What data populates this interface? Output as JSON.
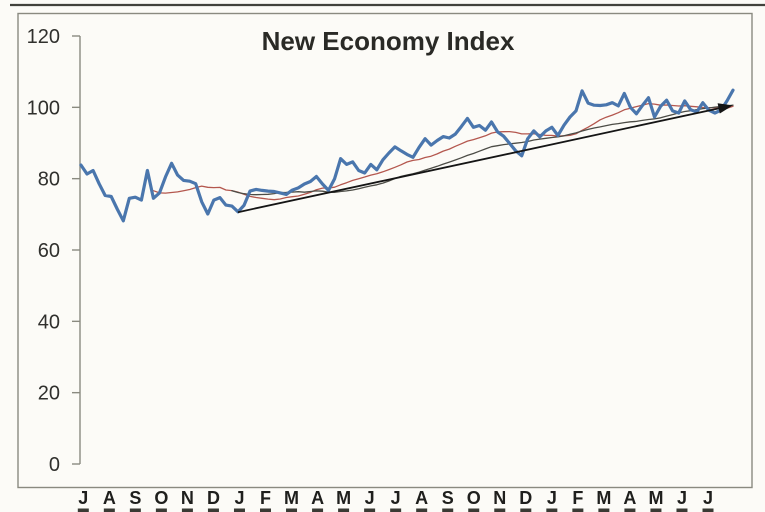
{
  "chart_data": {
    "type": "line",
    "title": "New Economy Index",
    "x_labels": [
      "J",
      "A",
      "S",
      "O",
      "N",
      "D",
      "J",
      "F",
      "M",
      "A",
      "M",
      "J",
      "J",
      "A",
      "S",
      "O",
      "N",
      "D",
      "J",
      "F",
      "M",
      "A",
      "M",
      "J",
      "J"
    ],
    "y_ticks": [
      0,
      20,
      40,
      60,
      80,
      100,
      120
    ],
    "ylim": [
      0,
      120
    ],
    "grid": false,
    "legend": "none",
    "series": [
      {
        "name": "weekly-index",
        "type": "line",
        "color": "#4a76ad",
        "width": 3.2,
        "values": [
          83.8,
          81.3,
          82.3,
          78.6,
          75.3,
          75.0,
          71.5,
          68.2,
          74.5,
          74.8,
          74.0,
          82.3,
          74.5,
          76.0,
          80.5,
          84.3,
          81.0,
          79.5,
          79.3,
          78.6,
          73.5,
          70.1,
          74.0,
          74.7,
          72.6,
          72.3,
          70.7,
          72.5,
          76.5,
          77.0,
          76.7,
          76.5,
          76.4,
          76.0,
          75.6,
          76.8,
          77.4,
          78.5,
          79.2,
          80.6,
          78.5,
          76.7,
          80.0,
          85.6,
          84.0,
          84.7,
          82.3,
          81.6,
          84.0,
          82.5,
          85.3,
          87.2,
          88.9,
          87.8,
          86.8,
          86.0,
          88.8,
          91.2,
          89.4,
          90.7,
          91.8,
          91.4,
          92.5,
          94.6,
          96.9,
          94.4,
          94.9,
          93.6,
          95.9,
          93.1,
          91.9,
          89.9,
          87.8,
          86.4,
          91.2,
          93.4,
          91.7,
          93.4,
          94.4,
          92.1,
          95.0,
          97.3,
          99.0,
          104.6,
          101.2,
          100.6,
          100.5,
          100.7,
          101.3,
          100.4,
          103.9,
          100.0,
          98.2,
          100.5,
          102.7,
          97.3,
          100.3,
          102.0,
          99.0,
          98.4,
          101.8,
          99.3,
          98.7,
          101.3,
          99.2,
          98.4,
          99.2,
          101.8,
          104.8
        ]
      },
      {
        "name": "moving-average-short",
        "type": "moving-average",
        "window": 13,
        "color": "#b4574e",
        "width": 1.3
      },
      {
        "name": "moving-average-long",
        "type": "moving-average",
        "window": 26,
        "color": "#4c4c46",
        "width": 1.3
      }
    ],
    "trendline": {
      "name": "trend-arrow",
      "color": "#151515",
      "width": 1.8,
      "arrowhead": true,
      "start": {
        "week": 26,
        "value": 70.6
      },
      "end": {
        "week": 107,
        "value": 100.2
      }
    }
  }
}
